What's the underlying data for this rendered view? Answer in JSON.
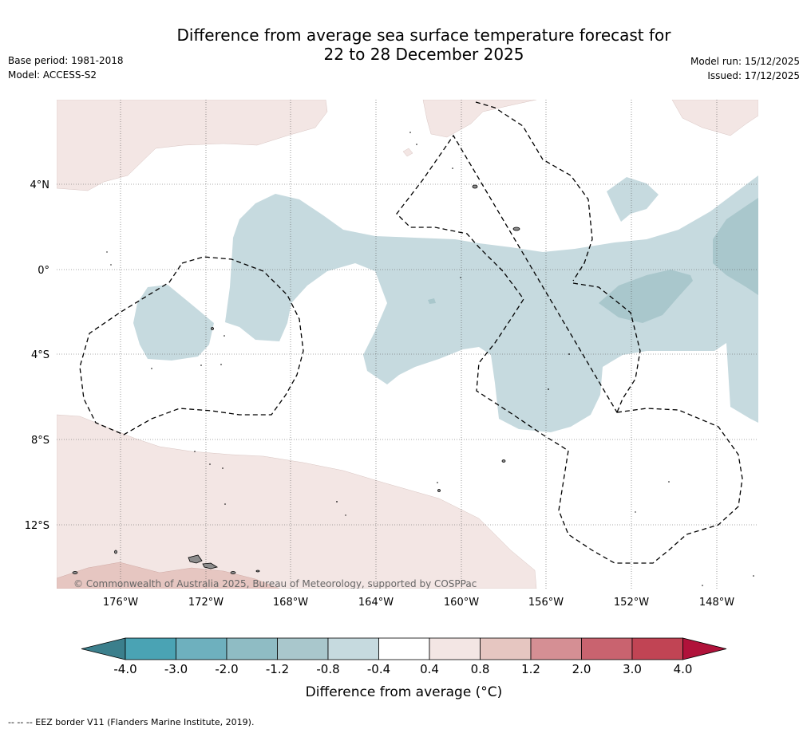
{
  "title": {
    "line1": "Difference from average sea surface temperature forecast for",
    "line2": "22 to 28 December 2025"
  },
  "info_left": {
    "base_period": "Base period: 1981-2018",
    "model": "Model: ACCESS-S2"
  },
  "info_right": {
    "model_run": "Model run: 15/12/2025",
    "issued": "Issued: 17/12/2025"
  },
  "map": {
    "lat_labels": [
      "4°N",
      "0°",
      "4°S",
      "8°S",
      "12°S"
    ],
    "lon_labels": [
      "176°W",
      "172°W",
      "168°W",
      "164°W",
      "160°W",
      "156°W",
      "152°W",
      "148°W"
    ],
    "copyright": "© Commonwealth of Australia 2025, Bureau of Meteorology, supported by COSPPac"
  },
  "colorbar": {
    "ticks": [
      "-4.0",
      "-3.0",
      "-2.0",
      "-1.2",
      "-0.8",
      "-0.4",
      "0.4",
      "0.8",
      "1.2",
      "2.0",
      "3.0",
      "4.0"
    ],
    "colors": [
      "#4aa3b4",
      "#6eb0be",
      "#8fbcc4",
      "#a9c7cc",
      "#c6dadf",
      "#ffffff",
      "#f3e6e4",
      "#e6c6c1",
      "#d58f94",
      "#c9636f",
      "#c14454"
    ],
    "low_extend_color": "#3b7f8c",
    "high_extend_color": "#b0123a",
    "label": "Difference from average (°C)"
  },
  "footnote": "--  --  -- EEZ border V11 (Flanders Marine Institute, 2019).",
  "colors": {
    "warm_light": "#f3e6e4",
    "warm_mid": "#e6c6c1",
    "cool_light": "#c6dadf",
    "cool_mid": "#a9c7cc",
    "land": "#8c8c8c"
  }
}
